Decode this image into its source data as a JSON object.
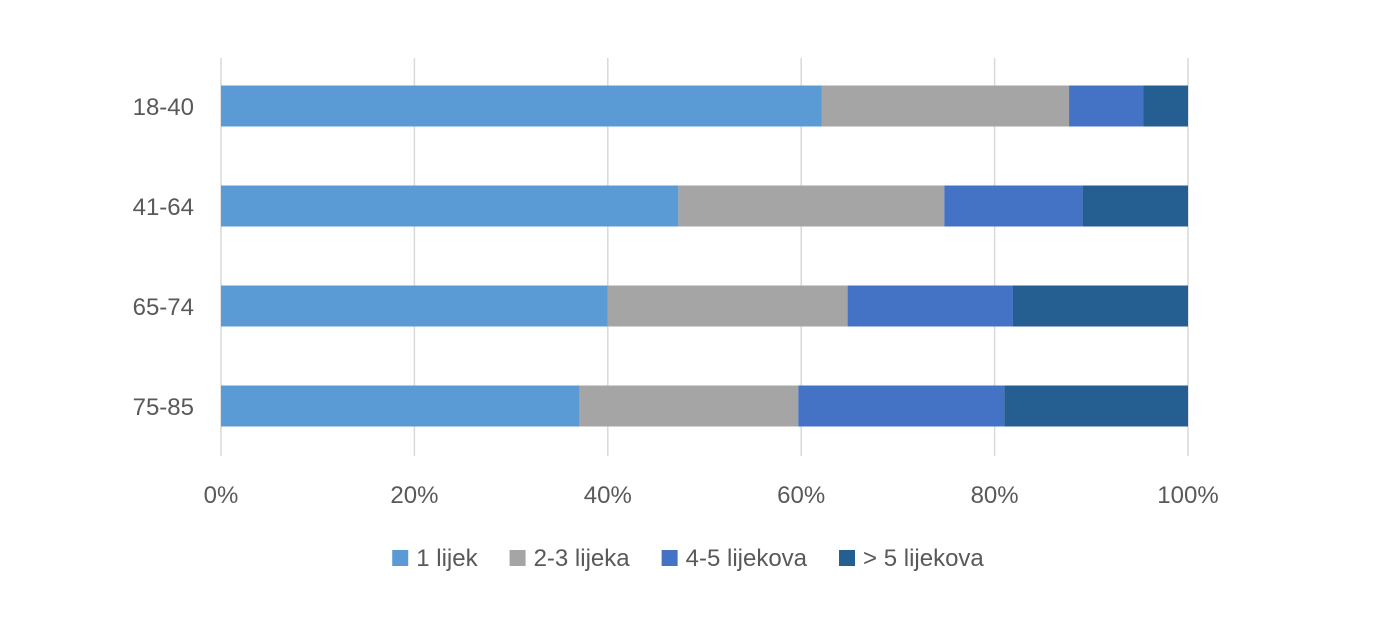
{
  "chart_data": {
    "type": "bar",
    "orientation": "horizontal",
    "stacked": "percent",
    "categories": [
      "18-40",
      "41-64",
      "65-74",
      "75-85"
    ],
    "series": [
      {
        "name": "1 lijek",
        "color": "#5B9BD5",
        "values": [
          62.1,
          47.3,
          40.0,
          37.1
        ]
      },
      {
        "name": "2-3 lijeka",
        "color": "#A5A5A5",
        "values": [
          25.6,
          27.5,
          24.8,
          22.6
        ]
      },
      {
        "name": "4-5 lijekova",
        "color": "#4472C4",
        "values": [
          7.7,
          14.3,
          17.1,
          21.3
        ]
      },
      {
        "name": "> 5 lijekova",
        "color": "#255E91",
        "values": [
          4.6,
          10.9,
          18.1,
          19.0
        ]
      }
    ],
    "xlim": [
      0,
      100
    ],
    "xticks": [
      "0%",
      "20%",
      "40%",
      "60%",
      "80%",
      "100%"
    ],
    "grid": "vertical",
    "legend": "bottom"
  }
}
